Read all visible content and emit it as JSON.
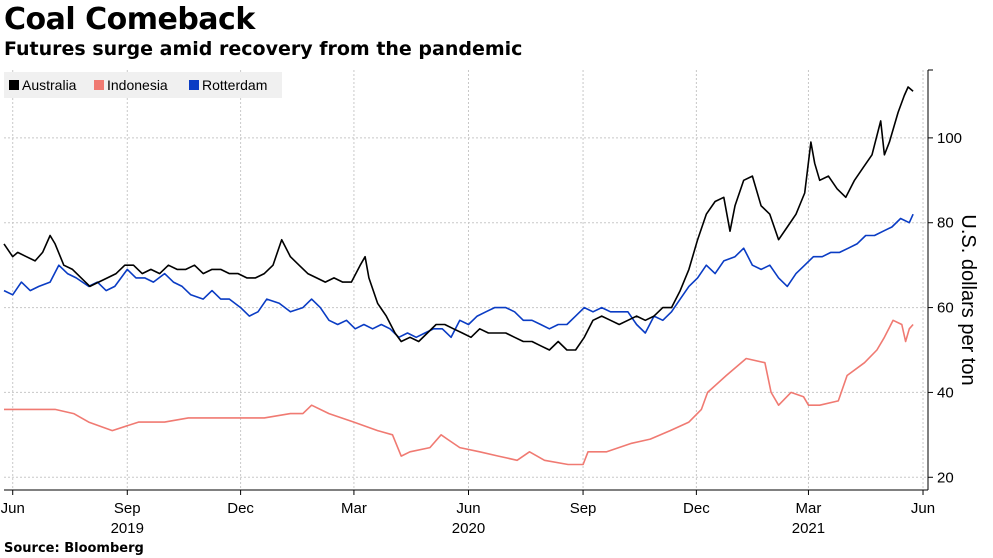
{
  "title": "Coal Comeback",
  "subtitle": "Futures surge amid recovery from the pandemic",
  "source": "Source: Bloomberg",
  "chart_data": {
    "type": "line",
    "ylabel": "U.S. dollars per ton",
    "ylim": [
      17,
      116
    ],
    "yticks": [
      20,
      40,
      60,
      80,
      100
    ],
    "xlim": [
      "2019-05-25",
      "2021-06-05"
    ],
    "x_month_ticks": [
      {
        "date": "2019-06-01",
        "label": "Jun"
      },
      {
        "date": "2019-09-01",
        "label": "Sep"
      },
      {
        "date": "2019-12-01",
        "label": "Dec"
      },
      {
        "date": "2020-03-01",
        "label": "Mar"
      },
      {
        "date": "2020-06-01",
        "label": "Jun"
      },
      {
        "date": "2020-09-01",
        "label": "Sep"
      },
      {
        "date": "2020-12-01",
        "label": "Dec"
      },
      {
        "date": "2021-03-01",
        "label": "Mar"
      },
      {
        "date": "2021-06-01",
        "label": "Jun"
      }
    ],
    "x_year_labels": [
      {
        "date": "2019-09-01",
        "label": "2019"
      },
      {
        "date": "2020-06-01",
        "label": "2020"
      },
      {
        "date": "2021-03-01",
        "label": "2021"
      }
    ],
    "grid": true,
    "legend_position": "top-left",
    "series": [
      {
        "name": "Australia",
        "color": "#000000",
        "points": [
          [
            "2019-05-25",
            75
          ],
          [
            "2019-06-01",
            72
          ],
          [
            "2019-06-05",
            73
          ],
          [
            "2019-06-12",
            72
          ],
          [
            "2019-06-19",
            71
          ],
          [
            "2019-06-25",
            73
          ],
          [
            "2019-07-01",
            77
          ],
          [
            "2019-07-05",
            75
          ],
          [
            "2019-07-12",
            70
          ],
          [
            "2019-07-19",
            69
          ],
          [
            "2019-07-26",
            67
          ],
          [
            "2019-08-02",
            65
          ],
          [
            "2019-08-09",
            66
          ],
          [
            "2019-08-16",
            67
          ],
          [
            "2019-08-23",
            68
          ],
          [
            "2019-08-30",
            70
          ],
          [
            "2019-09-06",
            70
          ],
          [
            "2019-09-13",
            68
          ],
          [
            "2019-09-20",
            69
          ],
          [
            "2019-09-27",
            68
          ],
          [
            "2019-10-04",
            70
          ],
          [
            "2019-10-11",
            69
          ],
          [
            "2019-10-18",
            69
          ],
          [
            "2019-10-25",
            70
          ],
          [
            "2019-11-01",
            68
          ],
          [
            "2019-11-08",
            69
          ],
          [
            "2019-11-15",
            69
          ],
          [
            "2019-11-22",
            68
          ],
          [
            "2019-11-29",
            68
          ],
          [
            "2019-12-06",
            67
          ],
          [
            "2019-12-13",
            67
          ],
          [
            "2019-12-20",
            68
          ],
          [
            "2019-12-27",
            70
          ],
          [
            "2020-01-03",
            76
          ],
          [
            "2020-01-10",
            72
          ],
          [
            "2020-01-17",
            70
          ],
          [
            "2020-01-24",
            68
          ],
          [
            "2020-01-31",
            67
          ],
          [
            "2020-02-07",
            66
          ],
          [
            "2020-02-14",
            67
          ],
          [
            "2020-02-21",
            66
          ],
          [
            "2020-02-28",
            66
          ],
          [
            "2020-03-06",
            70
          ],
          [
            "2020-03-10",
            72
          ],
          [
            "2020-03-13",
            67
          ],
          [
            "2020-03-20",
            61
          ],
          [
            "2020-03-27",
            58
          ],
          [
            "2020-04-03",
            54
          ],
          [
            "2020-04-08",
            52
          ],
          [
            "2020-04-15",
            53
          ],
          [
            "2020-04-22",
            52
          ],
          [
            "2020-04-29",
            54
          ],
          [
            "2020-05-06",
            56
          ],
          [
            "2020-05-13",
            56
          ],
          [
            "2020-05-20",
            55
          ],
          [
            "2020-05-27",
            54
          ],
          [
            "2020-06-03",
            53
          ],
          [
            "2020-06-10",
            55
          ],
          [
            "2020-06-17",
            54
          ],
          [
            "2020-06-24",
            54
          ],
          [
            "2020-07-01",
            54
          ],
          [
            "2020-07-08",
            53
          ],
          [
            "2020-07-15",
            52
          ],
          [
            "2020-07-22",
            52
          ],
          [
            "2020-07-29",
            51
          ],
          [
            "2020-08-05",
            50
          ],
          [
            "2020-08-12",
            52
          ],
          [
            "2020-08-19",
            50
          ],
          [
            "2020-08-26",
            50
          ],
          [
            "2020-09-02",
            53
          ],
          [
            "2020-09-09",
            57
          ],
          [
            "2020-09-16",
            58
          ],
          [
            "2020-09-23",
            57
          ],
          [
            "2020-09-30",
            56
          ],
          [
            "2020-10-07",
            57
          ],
          [
            "2020-10-14",
            58
          ],
          [
            "2020-10-21",
            57
          ],
          [
            "2020-10-28",
            58
          ],
          [
            "2020-11-04",
            60
          ],
          [
            "2020-11-11",
            60
          ],
          [
            "2020-11-18",
            64
          ],
          [
            "2020-11-25",
            69
          ],
          [
            "2020-12-02",
            76
          ],
          [
            "2020-12-09",
            82
          ],
          [
            "2020-12-16",
            85
          ],
          [
            "2020-12-23",
            86
          ],
          [
            "2020-12-28",
            78
          ],
          [
            "2021-01-01",
            84
          ],
          [
            "2021-01-08",
            90
          ],
          [
            "2021-01-15",
            91
          ],
          [
            "2021-01-22",
            84
          ],
          [
            "2021-01-29",
            82
          ],
          [
            "2021-02-05",
            76
          ],
          [
            "2021-02-12",
            79
          ],
          [
            "2021-02-19",
            82
          ],
          [
            "2021-02-26",
            87
          ],
          [
            "2021-03-03",
            99
          ],
          [
            "2021-03-06",
            94
          ],
          [
            "2021-03-10",
            90
          ],
          [
            "2021-03-17",
            91
          ],
          [
            "2021-03-24",
            88
          ],
          [
            "2021-03-31",
            86
          ],
          [
            "2021-04-07",
            90
          ],
          [
            "2021-04-14",
            93
          ],
          [
            "2021-04-21",
            96
          ],
          [
            "2021-04-28",
            104
          ],
          [
            "2021-05-01",
            96
          ],
          [
            "2021-05-05",
            99
          ],
          [
            "2021-05-12",
            106
          ],
          [
            "2021-05-17",
            110
          ],
          [
            "2021-05-20",
            112
          ],
          [
            "2021-05-24",
            111
          ]
        ]
      },
      {
        "name": "Indonesia",
        "color": "#f07a72",
        "points": [
          [
            "2019-05-25",
            36
          ],
          [
            "2019-06-15",
            36
          ],
          [
            "2019-07-05",
            36
          ],
          [
            "2019-07-20",
            35
          ],
          [
            "2019-08-01",
            33
          ],
          [
            "2019-08-20",
            31
          ],
          [
            "2019-09-10",
            33
          ],
          [
            "2019-10-01",
            33
          ],
          [
            "2019-10-20",
            34
          ],
          [
            "2019-11-10",
            34
          ],
          [
            "2019-12-01",
            34
          ],
          [
            "2019-12-20",
            34
          ],
          [
            "2020-01-10",
            35
          ],
          [
            "2020-01-20",
            35
          ],
          [
            "2020-01-27",
            37
          ],
          [
            "2020-02-10",
            35
          ],
          [
            "2020-03-01",
            33
          ],
          [
            "2020-03-20",
            31
          ],
          [
            "2020-04-01",
            30
          ],
          [
            "2020-04-08",
            25
          ],
          [
            "2020-04-15",
            26
          ],
          [
            "2020-05-01",
            27
          ],
          [
            "2020-05-10",
            30
          ],
          [
            "2020-05-15",
            29
          ],
          [
            "2020-05-25",
            27
          ],
          [
            "2020-06-10",
            26
          ],
          [
            "2020-06-25",
            25
          ],
          [
            "2020-07-10",
            24
          ],
          [
            "2020-07-20",
            26
          ],
          [
            "2020-08-01",
            24
          ],
          [
            "2020-08-20",
            23
          ],
          [
            "2020-09-01",
            23
          ],
          [
            "2020-09-05",
            26
          ],
          [
            "2020-09-20",
            26
          ],
          [
            "2020-10-10",
            28
          ],
          [
            "2020-10-25",
            29
          ],
          [
            "2020-11-10",
            31
          ],
          [
            "2020-11-25",
            33
          ],
          [
            "2020-12-05",
            36
          ],
          [
            "2020-12-10",
            40
          ],
          [
            "2020-12-25",
            44
          ],
          [
            "2021-01-10",
            48
          ],
          [
            "2021-01-25",
            47
          ],
          [
            "2021-01-30",
            40
          ],
          [
            "2021-02-05",
            37
          ],
          [
            "2021-02-15",
            40
          ],
          [
            "2021-02-25",
            39
          ],
          [
            "2021-03-01",
            37
          ],
          [
            "2021-03-10",
            37
          ],
          [
            "2021-03-25",
            38
          ],
          [
            "2021-04-01",
            44
          ],
          [
            "2021-04-15",
            47
          ],
          [
            "2021-04-25",
            50
          ],
          [
            "2021-05-01",
            53
          ],
          [
            "2021-05-08",
            57
          ],
          [
            "2021-05-15",
            56
          ],
          [
            "2021-05-18",
            52
          ],
          [
            "2021-05-21",
            55
          ],
          [
            "2021-05-24",
            56
          ]
        ]
      },
      {
        "name": "Rotterdam",
        "color": "#0a3cc4",
        "points": [
          [
            "2019-05-25",
            64
          ],
          [
            "2019-06-01",
            63
          ],
          [
            "2019-06-08",
            66
          ],
          [
            "2019-06-15",
            64
          ],
          [
            "2019-06-22",
            65
          ],
          [
            "2019-07-01",
            66
          ],
          [
            "2019-07-08",
            70
          ],
          [
            "2019-07-15",
            68
          ],
          [
            "2019-07-22",
            67
          ],
          [
            "2019-08-01",
            65
          ],
          [
            "2019-08-08",
            66
          ],
          [
            "2019-08-15",
            64
          ],
          [
            "2019-08-22",
            65
          ],
          [
            "2019-09-01",
            69
          ],
          [
            "2019-09-08",
            67
          ],
          [
            "2019-09-15",
            67
          ],
          [
            "2019-09-22",
            66
          ],
          [
            "2019-10-01",
            68
          ],
          [
            "2019-10-08",
            66
          ],
          [
            "2019-10-15",
            65
          ],
          [
            "2019-10-22",
            63
          ],
          [
            "2019-11-01",
            62
          ],
          [
            "2019-11-08",
            64
          ],
          [
            "2019-11-15",
            62
          ],
          [
            "2019-11-22",
            62
          ],
          [
            "2019-12-01",
            60
          ],
          [
            "2019-12-08",
            58
          ],
          [
            "2019-12-15",
            59
          ],
          [
            "2019-12-22",
            62
          ],
          [
            "2020-01-01",
            61
          ],
          [
            "2020-01-10",
            59
          ],
          [
            "2020-01-20",
            60
          ],
          [
            "2020-01-27",
            62
          ],
          [
            "2020-02-03",
            60
          ],
          [
            "2020-02-10",
            57
          ],
          [
            "2020-02-17",
            56
          ],
          [
            "2020-02-24",
            57
          ],
          [
            "2020-03-02",
            55
          ],
          [
            "2020-03-09",
            56
          ],
          [
            "2020-03-16",
            55
          ],
          [
            "2020-03-23",
            56
          ],
          [
            "2020-03-30",
            55
          ],
          [
            "2020-04-06",
            53
          ],
          [
            "2020-04-13",
            54
          ],
          [
            "2020-04-20",
            53
          ],
          [
            "2020-04-27",
            54
          ],
          [
            "2020-05-04",
            55
          ],
          [
            "2020-05-11",
            55
          ],
          [
            "2020-05-18",
            53
          ],
          [
            "2020-05-25",
            57
          ],
          [
            "2020-06-01",
            56
          ],
          [
            "2020-06-08",
            58
          ],
          [
            "2020-06-15",
            59
          ],
          [
            "2020-06-22",
            60
          ],
          [
            "2020-07-01",
            60
          ],
          [
            "2020-07-08",
            59
          ],
          [
            "2020-07-15",
            57
          ],
          [
            "2020-07-22",
            57
          ],
          [
            "2020-07-29",
            56
          ],
          [
            "2020-08-05",
            55
          ],
          [
            "2020-08-12",
            56
          ],
          [
            "2020-08-19",
            56
          ],
          [
            "2020-08-26",
            58
          ],
          [
            "2020-09-02",
            60
          ],
          [
            "2020-09-09",
            59
          ],
          [
            "2020-09-16",
            60
          ],
          [
            "2020-09-23",
            59
          ],
          [
            "2020-09-30",
            59
          ],
          [
            "2020-10-07",
            59
          ],
          [
            "2020-10-14",
            56
          ],
          [
            "2020-10-21",
            54
          ],
          [
            "2020-10-28",
            58
          ],
          [
            "2020-11-04",
            57
          ],
          [
            "2020-11-11",
            59
          ],
          [
            "2020-11-18",
            62
          ],
          [
            "2020-11-25",
            65
          ],
          [
            "2020-12-02",
            67
          ],
          [
            "2020-12-09",
            70
          ],
          [
            "2020-12-16",
            68
          ],
          [
            "2020-12-23",
            71
          ],
          [
            "2021-01-01",
            72
          ],
          [
            "2021-01-08",
            74
          ],
          [
            "2021-01-15",
            70
          ],
          [
            "2021-01-22",
            69
          ],
          [
            "2021-01-29",
            70
          ],
          [
            "2021-02-05",
            67
          ],
          [
            "2021-02-12",
            65
          ],
          [
            "2021-02-19",
            68
          ],
          [
            "2021-02-26",
            70
          ],
          [
            "2021-03-05",
            72
          ],
          [
            "2021-03-12",
            72
          ],
          [
            "2021-03-19",
            73
          ],
          [
            "2021-03-26",
            73
          ],
          [
            "2021-04-02",
            74
          ],
          [
            "2021-04-09",
            75
          ],
          [
            "2021-04-16",
            77
          ],
          [
            "2021-04-23",
            77
          ],
          [
            "2021-04-30",
            78
          ],
          [
            "2021-05-07",
            79
          ],
          [
            "2021-05-14",
            81
          ],
          [
            "2021-05-21",
            80
          ],
          [
            "2021-05-24",
            82
          ]
        ]
      }
    ]
  }
}
